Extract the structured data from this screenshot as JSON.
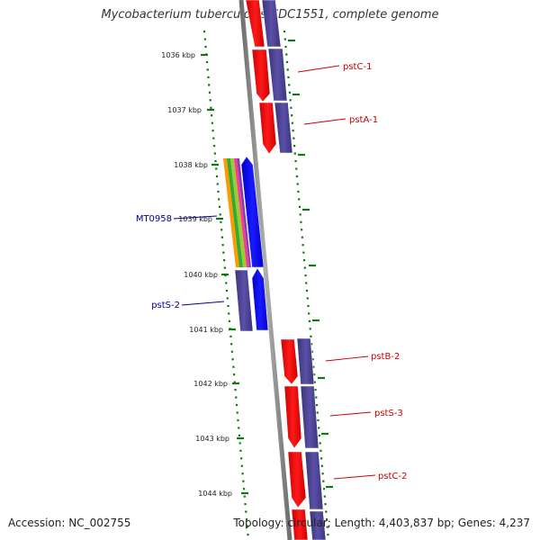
{
  "title": "Mycobacterium tuberculosis CDC1551, complete genome",
  "footer": {
    "accession": "Accession: NC_002755",
    "stats": "Topology: circular; Length: 4,403,837 bp; Genes: 4,237"
  },
  "colors": {
    "forward_gene": "#ff0000",
    "reverse_gene": "#0000ff",
    "cds": "#4a4090",
    "backbone": "#808080",
    "tick": "#117711",
    "label_red": "#cc0000",
    "label_blue": "#000099"
  },
  "scale": {
    "unit": "kbp",
    "ticks": [
      {
        "label": "1036 kbp",
        "kbp": 1036
      },
      {
        "label": "1037 kbp",
        "kbp": 1037
      },
      {
        "label": "1038 kbp",
        "kbp": 1038
      },
      {
        "label": "1039 kbp",
        "kbp": 1039
      },
      {
        "label": "1040 kbp",
        "kbp": 1040
      },
      {
        "label": "1041 kbp",
        "kbp": 1041
      },
      {
        "label": "1042 kbp",
        "kbp": 1042
      },
      {
        "label": "1043 kbp",
        "kbp": 1043
      },
      {
        "label": "1044 kbp",
        "kbp": 1044
      }
    ]
  },
  "gene_labels": [
    {
      "text": "pstC-1",
      "color": "red"
    },
    {
      "text": "pstA-1",
      "color": "red"
    },
    {
      "text": "MT0958",
      "color": "blue"
    },
    {
      "text": "pstS-2",
      "color": "blue"
    },
    {
      "text": "pstB-2",
      "color": "red"
    },
    {
      "text": "pstS-3",
      "color": "red"
    },
    {
      "text": "pstC-2",
      "color": "red"
    }
  ]
}
